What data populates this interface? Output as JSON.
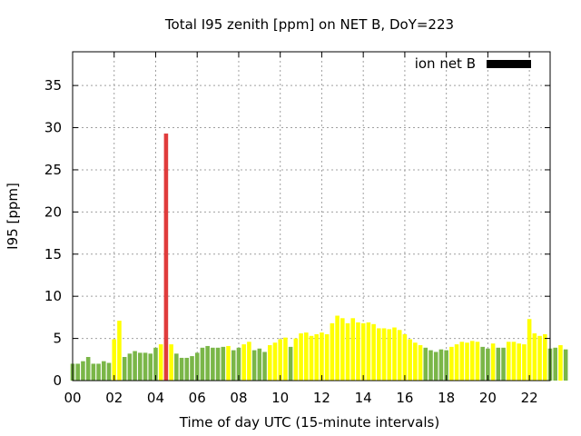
{
  "chart_data": {
    "type": "bar",
    "title": "Total I95 zenith [ppm] on NET B, DoY=223",
    "xlabel": "Time of day UTC (15-minute intervals)",
    "ylabel": "I95 [ppm]",
    "xlim": [
      0,
      23
    ],
    "ylim": [
      0,
      39
    ],
    "xticks": [
      "00",
      "02",
      "04",
      "06",
      "08",
      "10",
      "12",
      "14",
      "16",
      "18",
      "20",
      "22"
    ],
    "yticks": [
      "0",
      "5",
      "10",
      "15",
      "20",
      "25",
      "30",
      "35"
    ],
    "grid": true,
    "legend_position": "top-right",
    "series": [
      {
        "name": "ion net B",
        "color": "#000000",
        "interval_hours": 0.25,
        "values": [
          2.0,
          2.0,
          2.3,
          2.8,
          2.0,
          2.0,
          2.3,
          2.1,
          4.9,
          7.1,
          2.8,
          3.2,
          3.5,
          3.3,
          3.3,
          3.2,
          3.9,
          4.3,
          29.3,
          4.3,
          3.2,
          2.7,
          2.7,
          2.9,
          3.3,
          3.9,
          4.1,
          3.9,
          3.9,
          4.0,
          4.1,
          3.6,
          3.9,
          4.3,
          4.6,
          3.6,
          3.8,
          3.4,
          4.2,
          4.5,
          4.9,
          5.1,
          4.0,
          5.0,
          5.6,
          5.7,
          5.3,
          5.5,
          5.7,
          5.5,
          6.8,
          7.7,
          7.4,
          6.8,
          7.4,
          6.9,
          6.8,
          6.9,
          6.7,
          6.2,
          6.2,
          6.1,
          6.3,
          6.0,
          5.5,
          4.9,
          4.5,
          4.2,
          3.9,
          3.6,
          3.4,
          3.7,
          3.6,
          4.0,
          4.3,
          4.6,
          4.5,
          4.7,
          4.6,
          4.0,
          3.8,
          4.4,
          3.9,
          3.9,
          4.6,
          4.6,
          4.4,
          4.3,
          7.3,
          5.6,
          5.3,
          5.5,
          3.8,
          3.9,
          4.2,
          3.7
        ],
        "colors": {
          "green": "#7ab648",
          "yellow": "#ffff00",
          "red": "#e03c3c"
        },
        "value_colors": [
          "green",
          "green",
          "green",
          "green",
          "green",
          "green",
          "green",
          "green",
          "yellow",
          "yellow",
          "green",
          "green",
          "green",
          "green",
          "green",
          "green",
          "green",
          "yellow",
          "red",
          "yellow",
          "green",
          "green",
          "green",
          "green",
          "green",
          "green",
          "green",
          "green",
          "green",
          "green",
          "yellow",
          "green",
          "green",
          "yellow",
          "yellow",
          "green",
          "green",
          "green",
          "yellow",
          "yellow",
          "yellow",
          "yellow",
          "green",
          "yellow",
          "yellow",
          "yellow",
          "yellow",
          "yellow",
          "yellow",
          "yellow",
          "yellow",
          "yellow",
          "yellow",
          "yellow",
          "yellow",
          "yellow",
          "yellow",
          "yellow",
          "yellow",
          "yellow",
          "yellow",
          "yellow",
          "yellow",
          "yellow",
          "yellow",
          "yellow",
          "yellow",
          "yellow",
          "green",
          "green",
          "green",
          "green",
          "green",
          "yellow",
          "yellow",
          "yellow",
          "yellow",
          "yellow",
          "yellow",
          "green",
          "green",
          "yellow",
          "green",
          "green",
          "yellow",
          "yellow",
          "yellow",
          "yellow",
          "yellow",
          "yellow",
          "yellow",
          "yellow",
          "green",
          "green",
          "yellow",
          "green"
        ]
      }
    ]
  }
}
